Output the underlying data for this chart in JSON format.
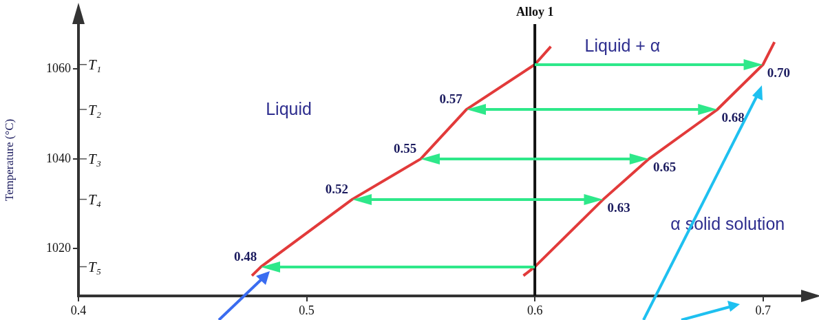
{
  "chart_data": {
    "type": "line",
    "ylabel": "Temperature (°C)",
    "xlim": [
      0.4,
      0.72
    ],
    "xticks": [
      0.4,
      0.5,
      0.6,
      0.7
    ],
    "ylim": [
      1009.5,
      1070
    ],
    "yticks": [
      1060,
      1040,
      1020
    ],
    "series": [
      {
        "color": "#e23a3a",
        "x": [
          0.476,
          0.48,
          0.52,
          0.55,
          0.57,
          0.6,
          0.607
        ],
        "values": [
          1014,
          1016,
          1031,
          1040,
          1051,
          1061,
          1065
        ]
      },
      {
        "color": "#e23a3a",
        "x": [
          0.595,
          0.6,
          0.63,
          0.65,
          0.68,
          0.7,
          0.705
        ],
        "values": [
          1014,
          1016,
          1031,
          1040,
          1051,
          1061,
          1066
        ]
      }
    ],
    "ref_lines": [
      {
        "axis": "x",
        "value": 0.6,
        "label": "Alloy 1",
        "color": "#111111"
      }
    ],
    "annotations": [
      "T₁",
      "T₂",
      "T₃",
      "T₄",
      "T₅",
      {
        "text": "0.70",
        "x": 0.7,
        "y": 1061
      },
      {
        "text": "0.57",
        "x": 0.57,
        "y": 1051
      },
      {
        "text": "0.68",
        "x": 0.68,
        "y": 1051
      },
      {
        "text": "0.55",
        "x": 0.55,
        "y": 1040
      },
      {
        "text": "0.65",
        "x": 0.65,
        "y": 1040
      },
      {
        "text": "0.52",
        "x": 0.52,
        "y": 1031
      },
      {
        "text": "0.63",
        "x": 0.63,
        "y": 1031
      },
      {
        "text": "0.48",
        "x": 0.48,
        "y": 1016
      },
      "Liquid",
      "Liquid + α",
      "α solid solution"
    ],
    "legend": false,
    "grid": false,
    "marker": "none",
    "line_style": "solid"
  }
}
